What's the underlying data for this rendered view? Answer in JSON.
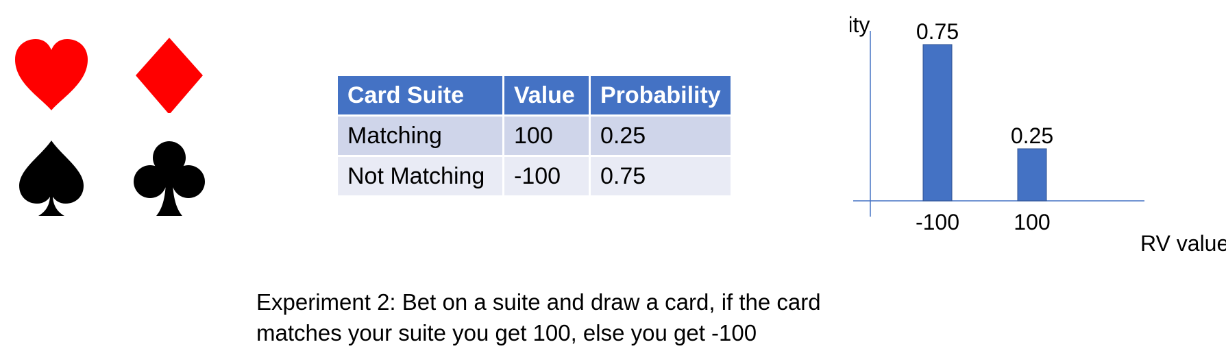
{
  "suits": [
    {
      "name": "heart",
      "color": "#ff0000"
    },
    {
      "name": "diamond",
      "color": "#ff0000"
    },
    {
      "name": "spade",
      "color": "#000000"
    },
    {
      "name": "club",
      "color": "#000000"
    }
  ],
  "table": {
    "headers": [
      "Card Suite",
      "Value",
      "Probability"
    ],
    "rows": [
      [
        "Matching",
        "100",
        "0.25"
      ],
      [
        "Not Matching",
        "-100",
        "0.75"
      ]
    ],
    "header_color": "#4472c4"
  },
  "chart_data": {
    "type": "bar",
    "categories": [
      "-100",
      "100"
    ],
    "values": [
      0.75,
      0.25
    ],
    "data_labels": [
      "0.75",
      "0.25"
    ],
    "xlabel": "RV value",
    "ylabel": "Probability",
    "ylim": [
      0,
      0.75
    ],
    "grid": false,
    "bar_color": "#4472c4"
  },
  "caption": {
    "line1": "Experiment 2: Bet on a suite and draw a card, if the card",
    "line2": "matches your suite you get 100, else you get -100"
  }
}
